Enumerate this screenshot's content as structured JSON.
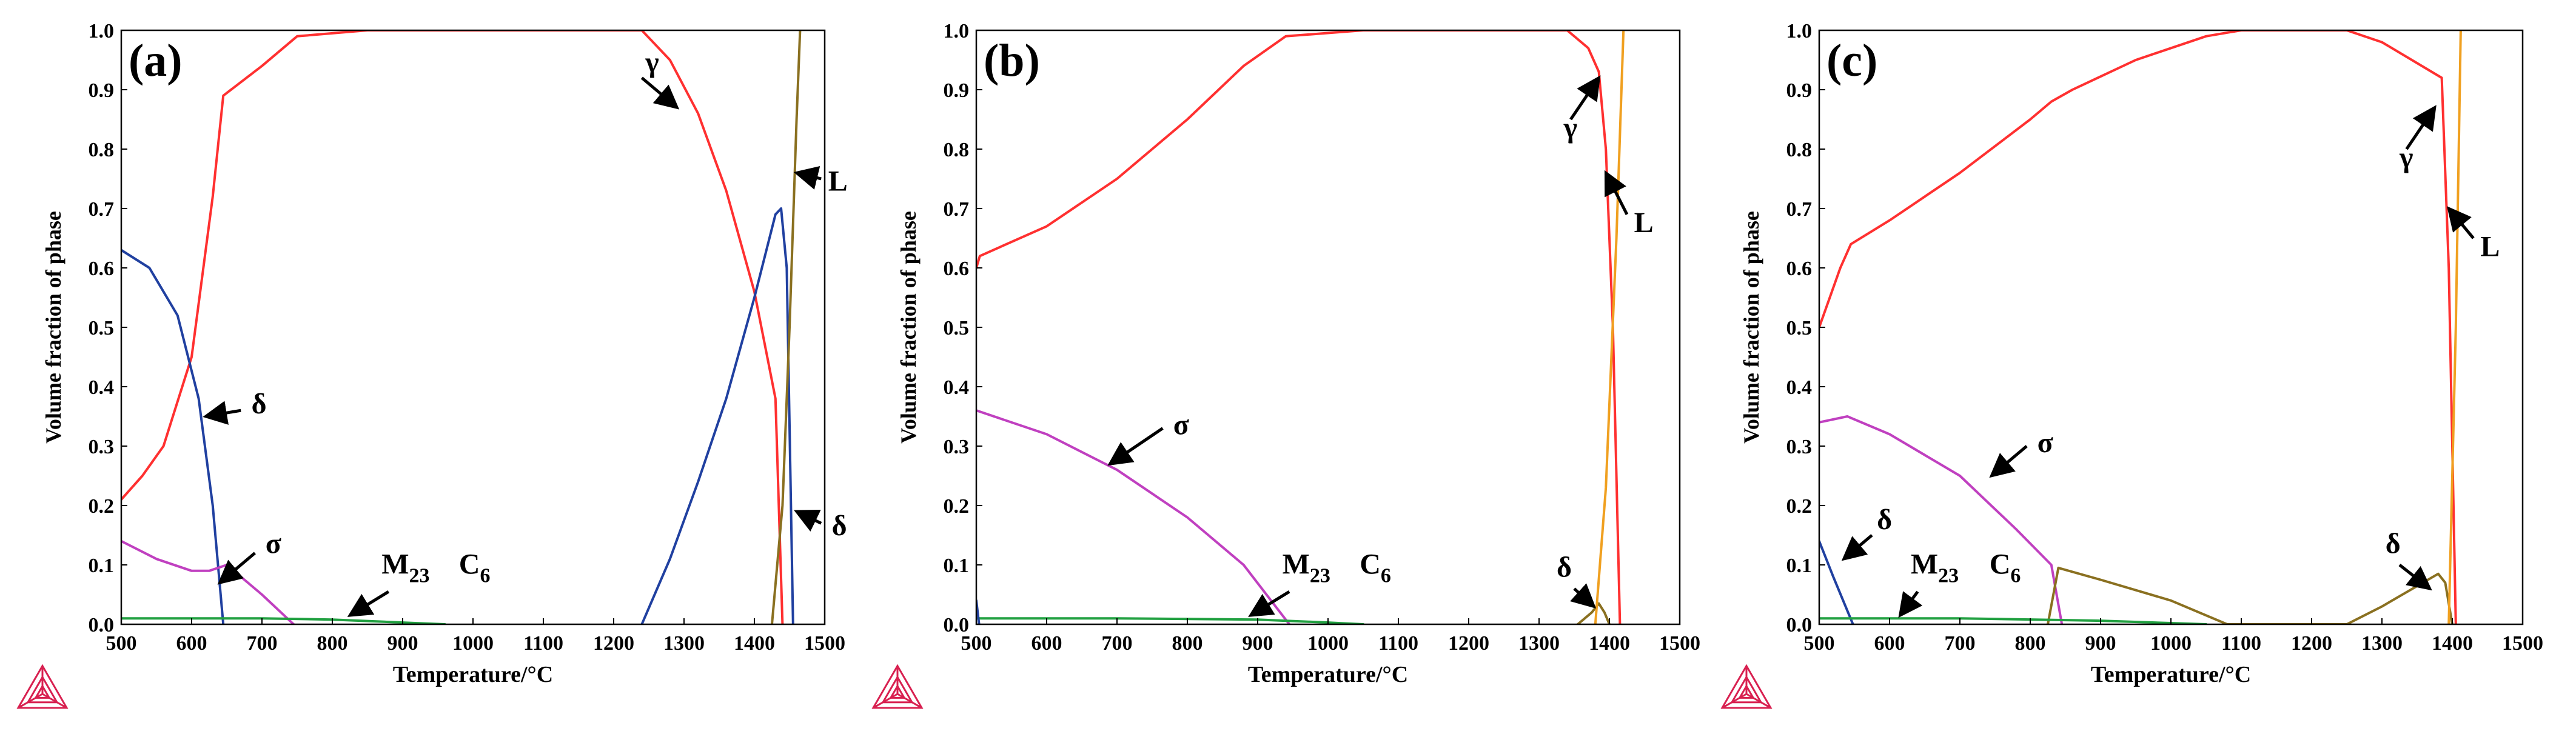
{
  "chart_data": [
    {
      "type": "line",
      "panel_label": "(a)",
      "xlabel": "Temperature/°C",
      "ylabel": "Volume fraction of phase",
      "xlim": [
        500,
        1500
      ],
      "ylim": [
        0,
        1.0
      ],
      "xticks": [
        500,
        600,
        700,
        800,
        900,
        1000,
        1100,
        1200,
        1300,
        1400,
        1500
      ],
      "yticks": [
        0.0,
        0.1,
        0.2,
        0.3,
        0.4,
        0.5,
        0.6,
        0.7,
        0.8,
        0.9,
        1.0
      ],
      "series": [
        {
          "name": "γ",
          "color": "#ff3030",
          "points": [
            [
              500,
              0.21
            ],
            [
              530,
              0.25
            ],
            [
              560,
              0.3
            ],
            [
              600,
              0.45
            ],
            [
              630,
              0.72
            ],
            [
              645,
              0.89
            ],
            [
              700,
              0.94
            ],
            [
              750,
              0.99
            ],
            [
              850,
              1.0
            ],
            [
              1240,
              1.0
            ],
            [
              1280,
              0.95
            ],
            [
              1320,
              0.86
            ],
            [
              1360,
              0.73
            ],
            [
              1400,
              0.56
            ],
            [
              1420,
              0.44
            ],
            [
              1430,
              0.38
            ],
            [
              1440,
              0.0
            ]
          ]
        },
        {
          "name": "δ",
          "color": "#2040a0",
          "points": [
            [
              500,
              0.63
            ],
            [
              540,
              0.6
            ],
            [
              580,
              0.52
            ],
            [
              610,
              0.38
            ],
            [
              630,
              0.2
            ],
            [
              645,
              0.0
            ]
          ]
        },
        {
          "name": "δ",
          "color": "#2040a0",
          "points": [
            [
              1240,
              0.0
            ],
            [
              1280,
              0.11
            ],
            [
              1320,
              0.24
            ],
            [
              1360,
              0.38
            ],
            [
              1400,
              0.55
            ],
            [
              1430,
              0.69
            ],
            [
              1438,
              0.7
            ],
            [
              1446,
              0.6
            ],
            [
              1455,
              0.0
            ]
          ]
        },
        {
          "name": "σ",
          "color": "#c040c0",
          "points": [
            [
              500,
              0.14
            ],
            [
              550,
              0.11
            ],
            [
              600,
              0.09
            ],
            [
              625,
              0.09
            ],
            [
              650,
              0.1
            ],
            [
              700,
              0.05
            ],
            [
              745,
              0.0
            ]
          ]
        },
        {
          "name": "M₂₃C₆",
          "color": "#20a040",
          "points": [
            [
              500,
              0.01
            ],
            [
              700,
              0.01
            ],
            [
              800,
              0.008
            ],
            [
              900,
              0.003
            ],
            [
              960,
              0.0
            ]
          ]
        },
        {
          "name": "L",
          "color": "#8a7020",
          "points": [
            [
              1425,
              0.0
            ],
            [
              1440,
              0.2
            ],
            [
              1450,
              0.5
            ],
            [
              1460,
              0.85
            ],
            [
              1465,
              1.0
            ]
          ]
        }
      ],
      "annotations": [
        {
          "text": "γ",
          "subscript": ""
        },
        {
          "text": "L",
          "subscript": ""
        },
        {
          "text": "δ",
          "subscript": ""
        },
        {
          "text": "σ",
          "subscript": ""
        },
        {
          "text": "M",
          "subscript": "23"
        },
        {
          "text": "C",
          "subscript": "6"
        },
        {
          "text": "δ",
          "subscript": ""
        }
      ]
    },
    {
      "type": "line",
      "panel_label": "(b)",
      "xlabel": "Temperature/°C",
      "ylabel": "Volume fraction of phase",
      "xlim": [
        500,
        1500
      ],
      "ylim": [
        0,
        1.0
      ],
      "xticks": [
        500,
        600,
        700,
        800,
        900,
        1000,
        1100,
        1200,
        1300,
        1400,
        1500
      ],
      "yticks": [
        0.0,
        0.1,
        0.2,
        0.3,
        0.4,
        0.5,
        0.6,
        0.7,
        0.8,
        0.9,
        1.0
      ],
      "series": [
        {
          "name": "γ",
          "color": "#ff3030",
          "points": [
            [
              500,
              0.6
            ],
            [
              505,
              0.62
            ],
            [
              600,
              0.67
            ],
            [
              700,
              0.75
            ],
            [
              800,
              0.85
            ],
            [
              880,
              0.94
            ],
            [
              940,
              0.99
            ],
            [
              1050,
              1.0
            ],
            [
              1340,
              1.0
            ],
            [
              1370,
              0.97
            ],
            [
              1385,
              0.93
            ],
            [
              1395,
              0.8
            ],
            [
              1405,
              0.5
            ],
            [
              1415,
              0.0
            ]
          ]
        },
        {
          "name": "σ",
          "color": "#c040c0",
          "points": [
            [
              500,
              0.36
            ],
            [
              600,
              0.32
            ],
            [
              700,
              0.26
            ],
            [
              800,
              0.18
            ],
            [
              880,
              0.1
            ],
            [
              945,
              0.0
            ]
          ]
        },
        {
          "name": "M₂₃C₆",
          "color": "#20a040",
          "points": [
            [
              500,
              0.01
            ],
            [
              700,
              0.01
            ],
            [
              900,
              0.008
            ],
            [
              1000,
              0.003
            ],
            [
              1050,
              0.0
            ]
          ]
        },
        {
          "name": "δ",
          "color": "#8a7020",
          "points": [
            [
              1355,
              0.0
            ],
            [
              1375,
              0.02
            ],
            [
              1385,
              0.035
            ],
            [
              1393,
              0.02
            ],
            [
              1400,
              0.0
            ]
          ]
        },
        {
          "name": "δ",
          "color": "#2040a0",
          "points": [
            [
              500,
              0.04
            ],
            [
              504,
              0.0
            ]
          ]
        },
        {
          "name": "L",
          "color": "#f0a020",
          "points": [
            [
              1380,
              0.0
            ],
            [
              1395,
              0.23
            ],
            [
              1410,
              0.65
            ],
            [
              1420,
              1.0
            ]
          ]
        }
      ],
      "annotations": [
        {
          "text": "γ",
          "subscript": ""
        },
        {
          "text": "L",
          "subscript": ""
        },
        {
          "text": "σ",
          "subscript": ""
        },
        {
          "text": "M",
          "subscript": "23"
        },
        {
          "text": "C",
          "subscript": "6"
        },
        {
          "text": "δ",
          "subscript": ""
        }
      ]
    },
    {
      "type": "line",
      "panel_label": "(c)",
      "xlabel": "Temperature/°C",
      "ylabel": "Volume fraction of phase",
      "xlim": [
        500,
        1500
      ],
      "ylim": [
        0,
        1.0
      ],
      "xticks": [
        500,
        600,
        700,
        800,
        900,
        1000,
        1100,
        1200,
        1300,
        1400,
        1500
      ],
      "yticks": [
        0.0,
        0.1,
        0.2,
        0.3,
        0.4,
        0.5,
        0.6,
        0.7,
        0.8,
        0.9,
        1.0
      ],
      "series": [
        {
          "name": "γ",
          "color": "#ff3030",
          "points": [
            [
              500,
              0.5
            ],
            [
              530,
              0.6
            ],
            [
              545,
              0.64
            ],
            [
              600,
              0.68
            ],
            [
              700,
              0.76
            ],
            [
              800,
              0.85
            ],
            [
              830,
              0.88
            ],
            [
              860,
              0.9
            ],
            [
              950,
              0.95
            ],
            [
              1050,
              0.99
            ],
            [
              1100,
              1.0
            ],
            [
              1250,
              1.0
            ],
            [
              1300,
              0.98
            ],
            [
              1385,
              0.92
            ],
            [
              1395,
              0.6
            ],
            [
              1405,
              0.0
            ]
          ]
        },
        {
          "name": "δ",
          "color": "#2040a0",
          "points": [
            [
              500,
              0.14
            ],
            [
              520,
              0.08
            ],
            [
              548,
              0.0
            ]
          ]
        },
        {
          "name": "σ",
          "color": "#c040c0",
          "points": [
            [
              500,
              0.34
            ],
            [
              540,
              0.35
            ],
            [
              600,
              0.32
            ],
            [
              700,
              0.25
            ],
            [
              780,
              0.16
            ],
            [
              830,
              0.1
            ],
            [
              845,
              0.0
            ]
          ]
        },
        {
          "name": "δ",
          "color": "#8a7020",
          "points": [
            [
              825,
              0.0
            ],
            [
              840,
              0.095
            ],
            [
              900,
              0.075
            ],
            [
              1000,
              0.04
            ],
            [
              1080,
              0.0
            ],
            [
              1250,
              0.0
            ],
            [
              1300,
              0.03
            ],
            [
              1380,
              0.085
            ],
            [
              1390,
              0.07
            ],
            [
              1400,
              0.0
            ]
          ]
        },
        {
          "name": "M₂₃C₆",
          "color": "#20a040",
          "points": [
            [
              500,
              0.01
            ],
            [
              700,
              0.01
            ],
            [
              900,
              0.006
            ],
            [
              1000,
              0.002
            ],
            [
              1050,
              0.0
            ]
          ]
        },
        {
          "name": "L",
          "color": "#f0a020",
          "points": [
            [
              1395,
              0.0
            ],
            [
              1405,
              0.5
            ],
            [
              1412,
              1.0
            ]
          ]
        }
      ],
      "annotations": [
        {
          "text": "γ",
          "subscript": ""
        },
        {
          "text": "L",
          "subscript": ""
        },
        {
          "text": "δ",
          "subscript": ""
        },
        {
          "text": "σ",
          "subscript": ""
        },
        {
          "text": "M",
          "subscript": "23"
        },
        {
          "text": "C",
          "subscript": "6"
        },
        {
          "text": "δ",
          "subscript": ""
        }
      ]
    }
  ],
  "logo": {
    "color": "#d82050"
  }
}
